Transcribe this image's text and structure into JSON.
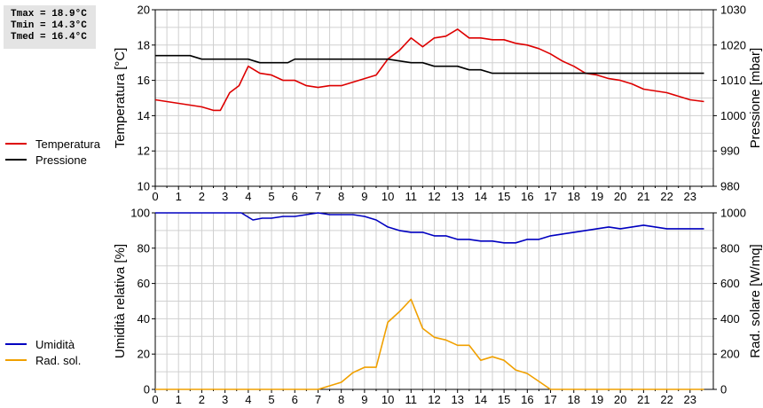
{
  "stats": {
    "tmax": "Tmax = 18.9°C",
    "tmin": "Tmin = 14.3°C",
    "tmed": "Tmed = 16.4°C"
  },
  "colors": {
    "temperature": "#dd0000",
    "pressure": "#000000",
    "humidity": "#0000c0",
    "solar": "#f0a000",
    "grid": "#d0d0d0"
  },
  "chart_data": [
    {
      "type": "line",
      "legend": [
        "Temperatura",
        "Pressione"
      ],
      "legend_placement": "left",
      "ylabel": "Temperatura [°C]",
      "ylabel_right": "Pressione [mbar]",
      "xlim": [
        0,
        24
      ],
      "ylim": [
        10,
        20
      ],
      "ylim_right": [
        980,
        1030
      ],
      "x_ticks": [
        "0",
        "1",
        "2",
        "3",
        "4",
        "5",
        "6",
        "7",
        "8",
        "9",
        "10",
        "11",
        "12",
        "13",
        "14",
        "15",
        "16",
        "17",
        "18",
        "19",
        "20",
        "21",
        "22",
        "23"
      ],
      "y_ticks": [
        "10",
        "12",
        "14",
        "16",
        "18",
        "20"
      ],
      "y_ticks_right": [
        "980",
        "990",
        "1000",
        "1010",
        "1020",
        "1030"
      ],
      "grid": true,
      "series": [
        {
          "name": "Temperatura",
          "axis": "left",
          "x": [
            0,
            0.5,
            1,
            1.5,
            2,
            2.5,
            2.8,
            3.2,
            3.6,
            4,
            4.5,
            5,
            5.5,
            6,
            6.5,
            7,
            7.5,
            8,
            8.5,
            9,
            9.5,
            10,
            10.5,
            11,
            11.5,
            12,
            12.5,
            13,
            13.5,
            14,
            14.5,
            15,
            15.5,
            16,
            16.5,
            17,
            17.5,
            18,
            18.5,
            19,
            19.5,
            20,
            20.5,
            21,
            21.5,
            22,
            22.5,
            23,
            23.6
          ],
          "values": [
            14.9,
            14.8,
            14.7,
            14.6,
            14.5,
            14.3,
            14.3,
            15.3,
            15.7,
            16.8,
            16.4,
            16.3,
            16.0,
            16.0,
            15.7,
            15.6,
            15.7,
            15.7,
            15.9,
            16.1,
            16.3,
            17.2,
            17.7,
            18.4,
            17.9,
            18.4,
            18.5,
            18.9,
            18.4,
            18.4,
            18.3,
            18.3,
            18.1,
            18.0,
            17.8,
            17.5,
            17.1,
            16.8,
            16.4,
            16.3,
            16.1,
            16.0,
            15.8,
            15.5,
            15.4,
            15.3,
            15.1,
            14.9,
            14.8
          ]
        },
        {
          "name": "Pressione",
          "axis": "right",
          "x": [
            0,
            1.5,
            2,
            3,
            4,
            4.5,
            5,
            5.7,
            6,
            7,
            8,
            9,
            10,
            11,
            11.5,
            12,
            13,
            13.5,
            14,
            14.5,
            15,
            16,
            17,
            18,
            19,
            20,
            21,
            22,
            23,
            23.6
          ],
          "values": [
            1017,
            1017,
            1016,
            1016,
            1016,
            1015,
            1015,
            1015,
            1016,
            1016,
            1016,
            1016,
            1016,
            1015,
            1015,
            1014,
            1014,
            1013,
            1013,
            1012,
            1012,
            1012,
            1012,
            1012,
            1012,
            1012,
            1012,
            1012,
            1012,
            1012
          ]
        }
      ]
    },
    {
      "type": "line",
      "legend": [
        "Umidità",
        "Rad. sol."
      ],
      "legend_placement": "left",
      "ylabel": "Umidità relativa [%]",
      "ylabel_right": "Rad. solare [W/mq]",
      "xlim": [
        0,
        24
      ],
      "ylim": [
        0,
        100
      ],
      "ylim_right": [
        0,
        1000
      ],
      "x_ticks": [
        "0",
        "1",
        "2",
        "3",
        "4",
        "5",
        "6",
        "7",
        "8",
        "9",
        "10",
        "11",
        "12",
        "13",
        "14",
        "15",
        "16",
        "17",
        "18",
        "19",
        "20",
        "21",
        "22",
        "23"
      ],
      "y_ticks": [
        "0",
        "20",
        "40",
        "60",
        "80",
        "100"
      ],
      "y_ticks_right": [
        "0",
        "200",
        "400",
        "600",
        "800",
        "1000"
      ],
      "grid": true,
      "series": [
        {
          "name": "Umidità",
          "axis": "left",
          "x": [
            0,
            1,
            2,
            3,
            3.7,
            4.2,
            4.6,
            5,
            5.5,
            6,
            6.5,
            7,
            7.5,
            8,
            8.5,
            9,
            9.5,
            10,
            10.5,
            11,
            11.5,
            12,
            12.5,
            13,
            13.5,
            14,
            14.5,
            15,
            15.5,
            16,
            16.5,
            17,
            17.5,
            18,
            18.5,
            19,
            19.5,
            20,
            20.5,
            21,
            21.5,
            22,
            22.5,
            23,
            23.6
          ],
          "values": [
            100,
            100,
            100,
            100,
            100,
            96,
            97,
            97,
            98,
            98,
            99,
            100,
            99,
            99,
            99,
            98,
            96,
            92,
            90,
            89,
            89,
            87,
            87,
            85,
            85,
            84,
            84,
            83,
            83,
            85,
            85,
            87,
            88,
            89,
            90,
            91,
            92,
            91,
            92,
            93,
            92,
            91,
            91,
            91,
            91
          ]
        },
        {
          "name": "Rad. sol.",
          "axis": "right",
          "x": [
            0,
            1,
            2,
            3,
            4,
            5,
            6,
            7,
            7.5,
            8,
            8.5,
            9,
            9.5,
            10,
            10.5,
            11,
            11.5,
            12,
            12.5,
            13,
            13.5,
            14,
            14.5,
            15,
            15.5,
            16,
            16.5,
            17,
            18,
            19,
            20,
            21,
            22,
            23,
            23.6
          ],
          "values": [
            0,
            0,
            0,
            0,
            0,
            0,
            0,
            0,
            20,
            40,
            95,
            125,
            125,
            380,
            440,
            510,
            345,
            295,
            280,
            250,
            250,
            165,
            185,
            165,
            110,
            90,
            45,
            0,
            0,
            0,
            0,
            0,
            0,
            0,
            0
          ]
        }
      ]
    }
  ]
}
